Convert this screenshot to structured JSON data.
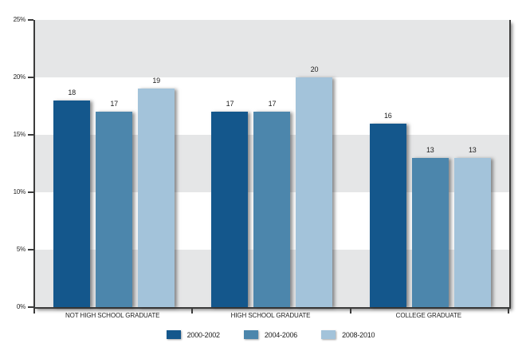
{
  "chart_data": {
    "type": "bar",
    "title": "",
    "categories": [
      "NOT HIGH SCHOOL GRADUATE",
      "HIGH SCHOOL GRADUATE",
      "COLLEGE GRADUATE"
    ],
    "series": [
      {
        "name": "2000-2002",
        "color": "#14578c",
        "values": [
          18,
          17,
          16
        ]
      },
      {
        "name": "2004-2006",
        "color": "#4c86ac",
        "values": [
          17,
          17,
          13
        ]
      },
      {
        "name": "2008-2010",
        "color": "#a3c3da",
        "values": [
          19,
          20,
          13
        ]
      }
    ],
    "value_labels_shown": true,
    "ylim": [
      0,
      25
    ],
    "y_ticks": [
      "0%",
      "5%",
      "10%",
      "15%",
      "20%",
      "25%"
    ],
    "grid": "alternating horizontal bands every 5%",
    "legend_position": "bottom"
  },
  "colors": {
    "band_gray": "#e5e6e7",
    "band_white": "#ffffff",
    "axis": "#3b3b3b",
    "text": "#1d1d1d",
    "series_dark_blue": "#14578c",
    "series_medium_blue": "#4c86ac",
    "series_light_blue": "#a3c3da"
  }
}
